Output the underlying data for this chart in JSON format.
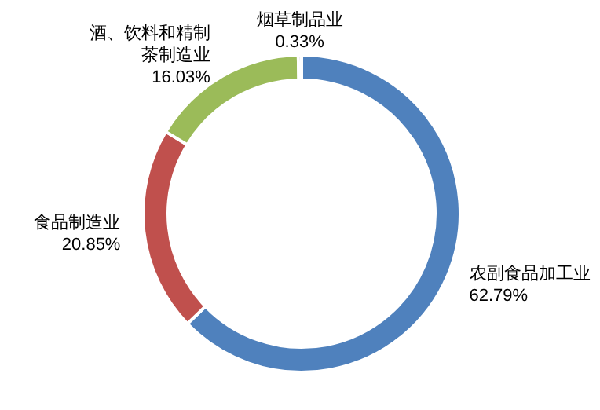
{
  "chart_data": {
    "type": "donut",
    "categories": [
      "农副食品加工业",
      "食品制造业",
      "酒、饮料和精制茶制造业",
      "烟草制品业"
    ],
    "values": [
      62.79,
      20.85,
      16.03,
      0.33
    ],
    "colors": [
      "#4f81bd",
      "#c0504d",
      "#9bbb59",
      "#8064a2"
    ],
    "value_labels": [
      "62.79%",
      "20.85%",
      "16.03%",
      "0.33%"
    ],
    "legend": false
  }
}
